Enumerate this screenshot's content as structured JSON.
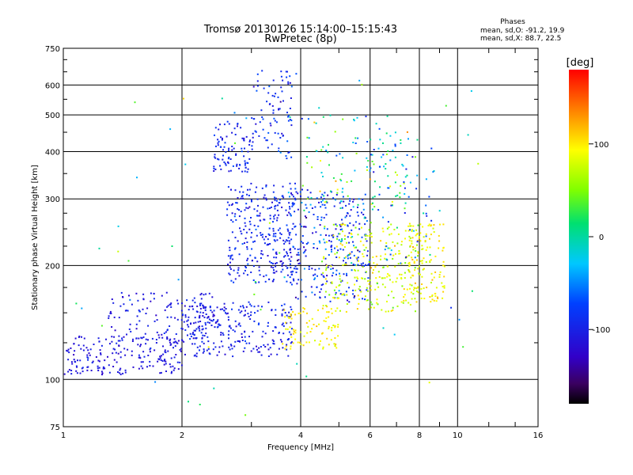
{
  "chart_data": {
    "type": "scatter",
    "title": "Tromsø 20130126 15:14:00–15:15:43",
    "subtitle": "RwPretec (8p)",
    "xlabel": "Frequency [MHz]",
    "ylabel": "Stationary phase Virtual Height [km]",
    "x_scale": "log",
    "y_scale": "log",
    "xlim": [
      1,
      16
    ],
    "ylim": [
      75,
      750
    ],
    "x_ticks": [
      1,
      2,
      4,
      6,
      8,
      10,
      16
    ],
    "x_tick_labels": [
      "1",
      "2",
      "4",
      "6",
      "8",
      "10",
      "16"
    ],
    "y_ticks": [
      75,
      100,
      200,
      300,
      400,
      500,
      600,
      750
    ],
    "y_tick_labels": [
      "75",
      "100",
      "200",
      "300",
      "400",
      "500",
      "600",
      "750"
    ],
    "grid": true,
    "stats": {
      "heading": "Phases",
      "line_o": "mean, sd,O: -91.2, 19.9",
      "line_x": "mean, sd,X:  88.7, 22.5"
    },
    "colorbar": {
      "label": "[deg]",
      "range": [
        -180,
        180
      ],
      "ticks": [
        100,
        0,
        -100
      ],
      "tick_labels": [
        "100",
        "0",
        "-100"
      ],
      "colormap": "rainbow-black"
    },
    "clusters": [
      {
        "x_range": [
          1.0,
          2.0
        ],
        "y_range": [
          103,
          130
        ],
        "phase_mean": -110,
        "phase_sd": 15,
        "count": 200
      },
      {
        "x_range": [
          1.3,
          2.4
        ],
        "y_range": [
          125,
          170
        ],
        "phase_mean": -105,
        "phase_sd": 18,
        "count": 140
      },
      {
        "x_range": [
          2.0,
          3.8
        ],
        "y_range": [
          115,
          160
        ],
        "phase_mean": -100,
        "phase_sd": 20,
        "count": 260
      },
      {
        "x_range": [
          2.4,
          3.0
        ],
        "y_range": [
          350,
          480
        ],
        "phase_mean": -95,
        "phase_sd": 20,
        "count": 90
      },
      {
        "x_range": [
          2.6,
          3.9
        ],
        "y_range": [
          180,
          330
        ],
        "phase_mean": -95,
        "phase_sd": 25,
        "count": 300
      },
      {
        "x_range": [
          3.0,
          3.8
        ],
        "y_range": [
          380,
          660
        ],
        "phase_mean": -90,
        "phase_sd": 30,
        "count": 90
      },
      {
        "x_range": [
          3.7,
          6.0
        ],
        "y_range": [
          160,
          320
        ],
        "phase_mean": -85,
        "phase_sd": 45,
        "count": 280
      },
      {
        "x_range": [
          3.6,
          5.0
        ],
        "y_range": [
          120,
          155
        ],
        "phase_mean": 95,
        "phase_sd": 15,
        "count": 90
      },
      {
        "x_range": [
          4.5,
          8.0
        ],
        "y_range": [
          150,
          260
        ],
        "phase_mean": 80,
        "phase_sd": 35,
        "count": 260
      },
      {
        "x_range": [
          7.5,
          9.3
        ],
        "y_range": [
          160,
          260
        ],
        "phase_mean": 95,
        "phase_sd": 20,
        "count": 120
      },
      {
        "x_range": [
          4.0,
          7.5
        ],
        "y_range": [
          280,
          500
        ],
        "phase_mean": 20,
        "phase_sd": 80,
        "count": 110
      },
      {
        "x_range": [
          5.0,
          9.0
        ],
        "y_range": [
          200,
          420
        ],
        "phase_mean": -60,
        "phase_sd": 70,
        "count": 80
      },
      {
        "x_range": [
          1.0,
          12.0
        ],
        "y_range": [
          80,
          680
        ],
        "phase_mean": 0,
        "phase_sd": 90,
        "count": 60
      }
    ]
  }
}
